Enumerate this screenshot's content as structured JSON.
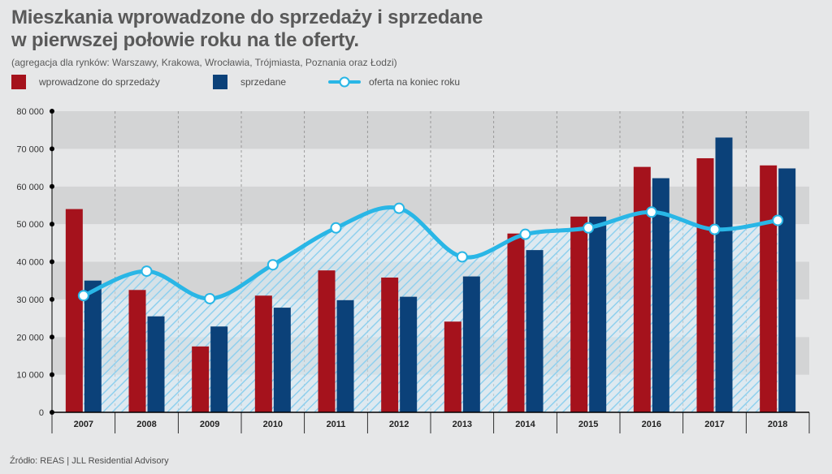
{
  "title_line1": "Mieszkania wprowadzone do sprzedaży i sprzedane",
  "title_line2": "w pierwszej połowie roku na tle oferty.",
  "subtitle": "(agregacja dla rynków: Warszawy, Krakowa, Wrocławia, Trójmiasta, Poznania oraz Łodzi)",
  "legend": {
    "introduced": "wprowadzone do sprzedaży",
    "sold": "sprzedane",
    "offer": "oferta na koniec roku"
  },
  "source": "Źródło: REAS | JLL Residential Advisory",
  "colors": {
    "introduced": "#a5121c",
    "sold": "#0b4179",
    "offer": "#29b6e6",
    "band_dark": "#d3d4d5",
    "band_light": "#e6e7e8"
  },
  "chart_data": {
    "type": "bar",
    "categories": [
      "2007",
      "2008",
      "2009",
      "2010",
      "2011",
      "2012",
      "2013",
      "2014",
      "2015",
      "2016",
      "2017",
      "2018"
    ],
    "series": [
      {
        "name": "wprowadzone do sprzedaży",
        "type": "bar",
        "values": [
          54000,
          32500,
          17500,
          31000,
          37700,
          35800,
          24100,
          47500,
          52000,
          65200,
          67500,
          65600
        ]
      },
      {
        "name": "sprzedane",
        "type": "bar",
        "values": [
          35000,
          25500,
          22800,
          27800,
          29800,
          30700,
          36100,
          43100,
          52000,
          62200,
          73000,
          64800
        ]
      },
      {
        "name": "oferta na koniec roku",
        "type": "line",
        "values": [
          31000,
          37500,
          30200,
          39200,
          49000,
          54200,
          41300,
          47300,
          49000,
          53200,
          48600,
          51000
        ]
      }
    ],
    "y_ticks": [
      "0",
      "10 000",
      "20 000",
      "30 000",
      "40 000",
      "50 000",
      "60 000",
      "70 000",
      "80 000"
    ],
    "ylim": [
      0,
      80000
    ],
    "grid": true,
    "legend_position": "top-left"
  }
}
